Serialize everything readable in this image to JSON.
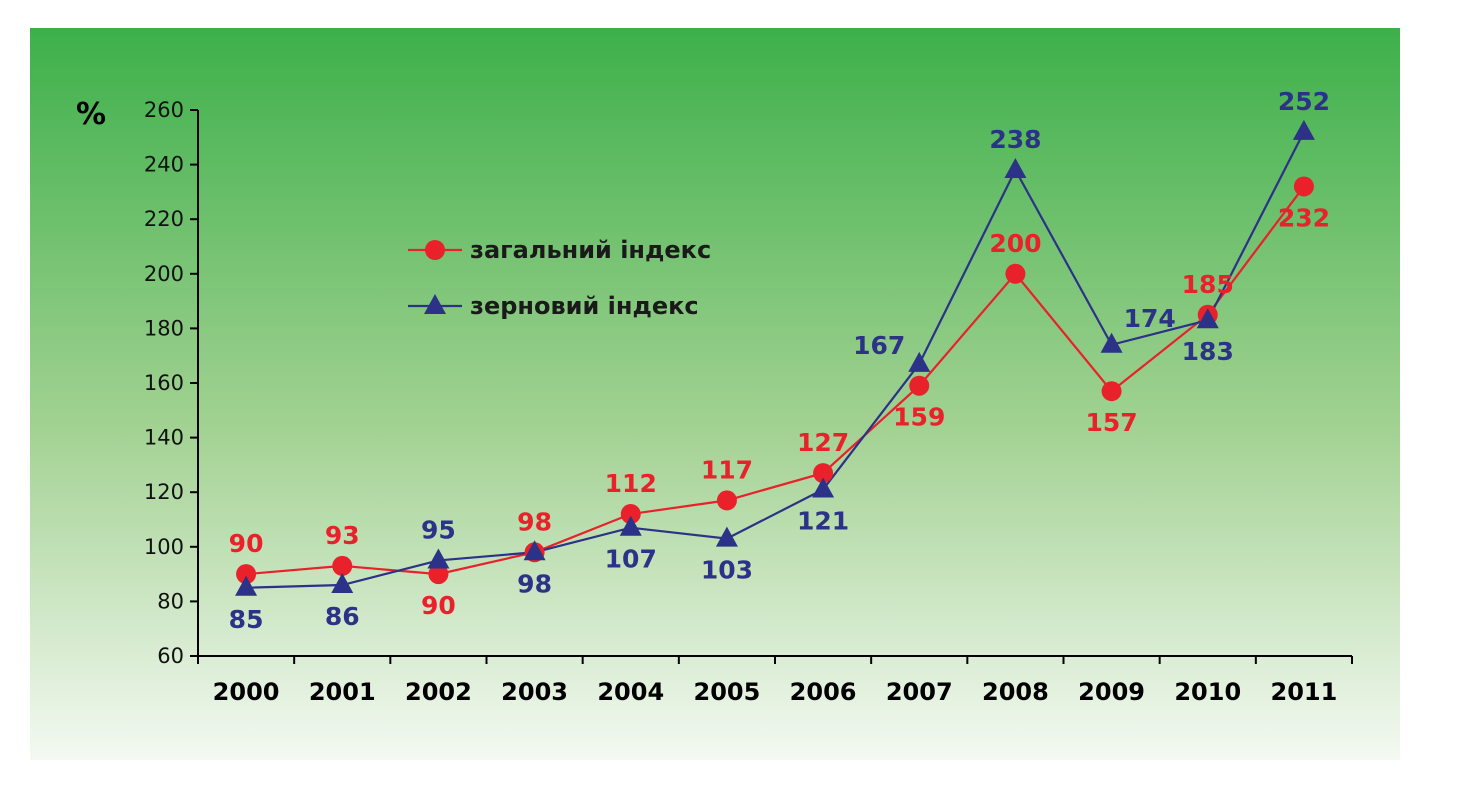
{
  "colors": {
    "panel_top": "#3db04a",
    "panel_bottom": "#f4f9f2",
    "series_general": "#e8212b",
    "series_grain": "#2b3287",
    "axis": "#000000"
  },
  "chart_data": {
    "type": "line",
    "title": "",
    "xlabel": "",
    "ylabel": "%",
    "categories": [
      "2000",
      "2001",
      "2002",
      "2003",
      "2004",
      "2005",
      "2006",
      "2007",
      "2008",
      "2009",
      "2010",
      "2011"
    ],
    "ylim": [
      60,
      260
    ],
    "yticks": [
      60,
      80,
      100,
      120,
      140,
      160,
      180,
      200,
      220,
      240,
      260
    ],
    "grid": false,
    "legend_position": "upper-left inside plot",
    "series": [
      {
        "name": "загальний індекс",
        "marker": "circle",
        "color": "#e8212b",
        "values": [
          90,
          93,
          90,
          98,
          112,
          117,
          127,
          159,
          200,
          157,
          185,
          232
        ],
        "labels": [
          "90",
          "93",
          "90",
          "98",
          "112",
          "117",
          "127",
          "159",
          "200",
          "157",
          "185",
          "232"
        ]
      },
      {
        "name": "зерновий індекс",
        "marker": "triangle",
        "color": "#2b3287",
        "values": [
          85,
          86,
          95,
          98,
          107,
          103,
          121,
          167,
          238,
          174,
          183,
          252
        ],
        "labels": [
          "85",
          "86",
          "95",
          "98",
          "107",
          "103",
          "121",
          "167",
          "238",
          "174",
          "183",
          "252"
        ]
      }
    ]
  }
}
